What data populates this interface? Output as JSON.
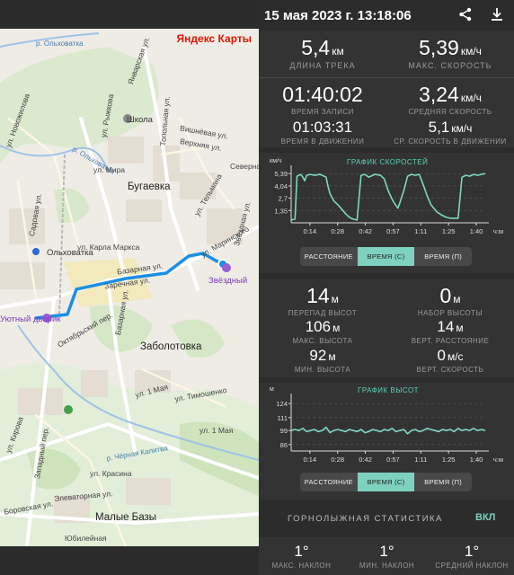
{
  "map": {
    "logo": "Яндекс Карты",
    "labels": {
      "river_olkhovatka_top": "р. Ольховатка",
      "river_olkhovatka_mid": "р. Ольховатка",
      "river_chernaya": "р. Чёрная Калитва",
      "yanvarskaya": "Январская ул.",
      "rizhkova": "ул. Рыжкова",
      "topolnaya": "Топольная ул.",
      "vishnevaya": "Вишнёвая ул.",
      "verkhnyaya": "Верхняя ул.",
      "school": "Школа",
      "novozhilova": "ул. Новожилова",
      "mira": "ул. Мира",
      "bugaevka": "Бугаевка",
      "severnaya": "Северная",
      "telmana": "ул. Тельмана",
      "marksa": "ул. Карла Маркса",
      "sadovaya": "Садовая ул.",
      "olkhovatka": "Ольховатка",
      "marinskogo": "ул. Маринского",
      "zvezdnaya": "Звёздная ул.",
      "bazarnaya_h": "Базарная ул.",
      "zarechnaya": "Заречная ул.",
      "zvezdny": "Звёздный",
      "oktyabrsky": "Октябрьский пер.",
      "dvorik": "Уютный дворик",
      "bazarnaya_v": "Базарная ул.",
      "zabolotovka": "Заболотовка",
      "may1_a": "ул. 1 Мая",
      "timoshenko": "ул. Тимошенко",
      "may1_b": "ул. 1 Мая",
      "kirova": "ул. Кирова",
      "zapadny": "Западный пер.",
      "krasina": "ул. Красина",
      "elevatornaya": "Элеваторная ул.",
      "borovskaya": "Боровская ул.",
      "malye_bazy": "Малые Базы",
      "yubileynaya": "Юбилейная"
    }
  },
  "header": {
    "title": "15 мая 2023 г. 13:18:06",
    "share_icon": "share-icon",
    "download_icon": "download-icon"
  },
  "summary": {
    "track_length": {
      "value": "5,4",
      "unit": "км",
      "label": "ДЛИНА ТРЕКА"
    },
    "max_speed": {
      "value": "5,39",
      "unit": "км/ч",
      "label": "МАКС. СКОРОСТЬ"
    },
    "record_time": {
      "value": "01:40:02",
      "label": "ВРЕМЯ ЗАПИСИ"
    },
    "avg_speed": {
      "value": "3,24",
      "unit": "км/ч",
      "label": "СРЕДНЯЯ СКОРОСТЬ"
    },
    "moving_time": {
      "value": "01:03:31",
      "label": "ВРЕМЯ В ДВИЖЕНИИ"
    },
    "avg_moving_speed": {
      "value": "5,1",
      "unit": "км/ч",
      "label": "СР. СКОРОСТЬ В ДВИЖЕНИИ"
    }
  },
  "speed_chart": {
    "title": "ГРАФИК СКОРОСТЕЙ",
    "unit": "км/ч",
    "x_unit": "ч:м",
    "yticks": [
      "5,39",
      "4,04",
      "2,7",
      "1,35"
    ],
    "xticks": [
      "0:14",
      "0:28",
      "0:42",
      "0:57",
      "1:11",
      "1:25",
      "1:40"
    ],
    "tabs": [
      "РАССТОЯНИЕ",
      "ВРЕМЯ (С)",
      "ВРЕМЯ (П)"
    ],
    "active_tab": 1
  },
  "elevation": {
    "drop": {
      "value": "14",
      "unit": "м",
      "label": "ПЕРЕПАД ВЫСОТ"
    },
    "gain": {
      "value": "0",
      "unit": "м",
      "label": "НАБОР ВЫСОТЫ"
    },
    "max": {
      "value": "106",
      "unit": "м",
      "label": "МАКС. ВЫСОТА"
    },
    "vert_dist": {
      "value": "14",
      "unit": "м",
      "label": "ВЕРТ. РАССТОЯНИЕ"
    },
    "min": {
      "value": "92",
      "unit": "м",
      "label": "МИН. ВЫСОТА"
    },
    "vert_speed": {
      "value": "0",
      "unit": "м/с",
      "label": "ВЕРТ. СКОРОСТЬ"
    }
  },
  "elevation_chart": {
    "title": "ГРАФИК ВЫСОТ",
    "unit": "м",
    "x_unit": "ч:м",
    "yticks": [
      "124",
      "111",
      "99",
      "86"
    ],
    "xticks": [
      "0:14",
      "0:28",
      "0:42",
      "0:57",
      "1:11",
      "1:25",
      "1:40"
    ],
    "tabs": [
      "РАССТОЯНИЕ",
      "ВРЕМЯ (С)",
      "ВРЕМЯ (П)"
    ],
    "active_tab": 1
  },
  "ski": {
    "title": "ГОРНОЛЫЖНАЯ СТАТИСТИКА",
    "toggle": "ВКЛ",
    "max_slope": {
      "value": "1°",
      "label": "МАКС. НАКЛОН"
    },
    "min_slope": {
      "value": "1°",
      "label": "МИН. НАКЛОН"
    },
    "avg_slope": {
      "value": "1°",
      "label": "СРЕДНИЙ НАКЛОН"
    }
  },
  "chart_data": [
    {
      "type": "line",
      "title": "ГРАФИК СКОРОСТЕЙ",
      "ylabel": "км/ч",
      "xlabel": "ч:м",
      "ylim": [
        0,
        5.9
      ],
      "xlim": [
        0,
        100
      ],
      "x_ticks": [
        "0:14",
        "0:28",
        "0:42",
        "0:57",
        "1:11",
        "1:25",
        "1:40"
      ],
      "y_ticks": [
        1.35,
        2.7,
        4.04,
        5.39
      ],
      "grid": true,
      "x": [
        0,
        2,
        3,
        5,
        6,
        7,
        8,
        10,
        12,
        15,
        18,
        19,
        20,
        21,
        22,
        24,
        26,
        28,
        30,
        32,
        34,
        36,
        38,
        40,
        43,
        46,
        48,
        50,
        52,
        53,
        55,
        56,
        58,
        60,
        62,
        64,
        66,
        68,
        70,
        72,
        75,
        78,
        80,
        82,
        84,
        86,
        88,
        90,
        92,
        94,
        96,
        98,
        100
      ],
      "y": [
        0.3,
        0.4,
        5.1,
        5.3,
        5.0,
        4.6,
        5.2,
        5.3,
        5.2,
        5.3,
        5.0,
        4.0,
        3.2,
        2.8,
        2.4,
        2.0,
        1.5,
        1.0,
        0.6,
        0.4,
        0.3,
        5.2,
        5.3,
        5.0,
        5.3,
        5.2,
        4.8,
        3.5,
        2.6,
        2.2,
        1.6,
        2.2,
        3.5,
        5.1,
        5.3,
        5.2,
        5.3,
        4.2,
        3.0,
        2.0,
        1.2,
        0.8,
        0.6,
        0.5,
        0.5,
        0.5,
        5.0,
        5.2,
        5.1,
        5.3,
        5.2,
        5.3,
        5.39
      ]
    },
    {
      "type": "line",
      "title": "ГРАФИК ВЫСОТ",
      "ylabel": "м",
      "xlabel": "ч:м",
      "ylim": [
        80,
        130
      ],
      "xlim": [
        0,
        100
      ],
      "x_ticks": [
        "0:14",
        "0:28",
        "0:42",
        "0:57",
        "1:11",
        "1:25",
        "1:40"
      ],
      "y_ticks": [
        86,
        99,
        111,
        124
      ],
      "grid": true,
      "x": [
        0,
        2,
        4,
        6,
        8,
        10,
        12,
        14,
        16,
        18,
        20,
        22,
        24,
        26,
        28,
        30,
        32,
        34,
        36,
        38,
        40,
        42,
        44,
        46,
        48,
        50,
        52,
        54,
        56,
        58,
        60,
        62,
        64,
        66,
        68,
        70,
        72,
        74,
        76,
        78,
        80,
        82,
        84,
        86,
        88,
        90,
        92,
        94,
        96,
        98,
        100
      ],
      "y": [
        99,
        100,
        99,
        101,
        98,
        99,
        100,
        98,
        99,
        102,
        97,
        99,
        100,
        99,
        98,
        100,
        99,
        98,
        100,
        97,
        98,
        100,
        99,
        98,
        100,
        99,
        101,
        98,
        99,
        100,
        96,
        99,
        100,
        98,
        99,
        101,
        100,
        99,
        98,
        100,
        99,
        100,
        98,
        101,
        99,
        100,
        99,
        101,
        99,
        100,
        99
      ]
    }
  ]
}
